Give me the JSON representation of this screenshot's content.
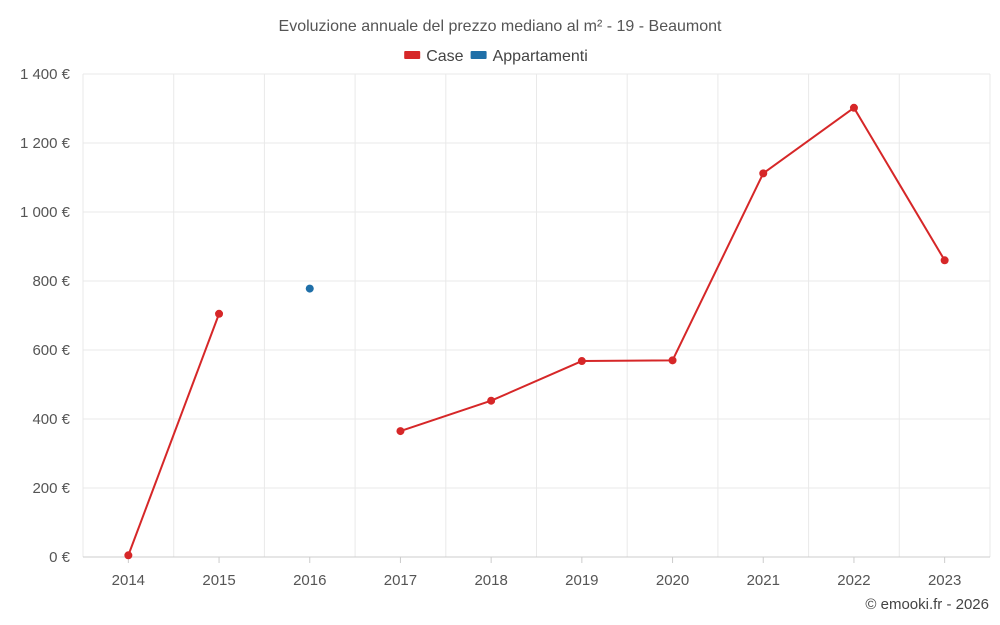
{
  "chart_data": {
    "type": "line",
    "title": "Evoluzione annuale del prezzo mediano al m² - 19 - Beaumont",
    "categories": [
      "2014",
      "2015",
      "2016",
      "2017",
      "2018",
      "2019",
      "2020",
      "2021",
      "2022",
      "2023"
    ],
    "series": [
      {
        "name": "Case",
        "color": "#d62728",
        "values": [
          5,
          705,
          null,
          365,
          453,
          568,
          570,
          1112,
          1302,
          860
        ]
      },
      {
        "name": "Appartamenti",
        "color": "#1f6fa8",
        "values": [
          null,
          null,
          778,
          null,
          null,
          null,
          null,
          null,
          null,
          null
        ]
      }
    ],
    "y_ticks": [
      0,
      200,
      400,
      600,
      800,
      1000,
      1200,
      1400
    ],
    "y_tick_labels": [
      "0 €",
      "200 €",
      "400 €",
      "600 €",
      "800 €",
      "1 000 €",
      "1 200 €",
      "1 400 €"
    ],
    "ylim": [
      0,
      1400
    ],
    "xlabel": "",
    "ylabel": "",
    "legend_position": "top-center",
    "grid": true
  },
  "credit": "© emooki.fr - 2026"
}
